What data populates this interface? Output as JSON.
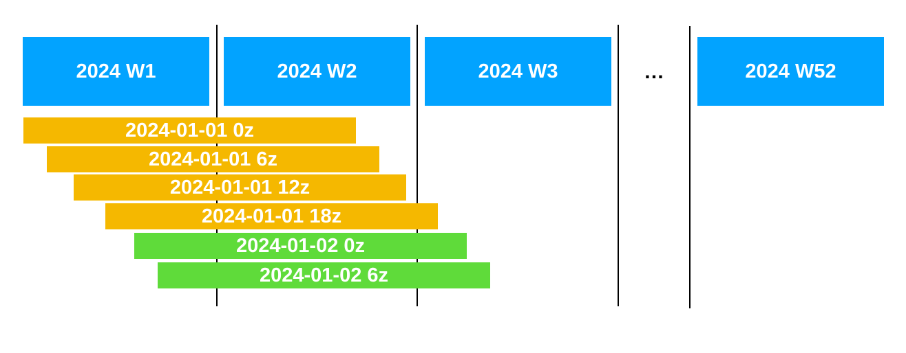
{
  "colors": {
    "week_box": "#02A3FF",
    "run_bar_day1": "#F5B800",
    "run_bar_day2": "#5FDB3A",
    "divider": "#000000"
  },
  "weeks": [
    {
      "label": "2024 W1"
    },
    {
      "label": "2024 W2"
    },
    {
      "label": "2024 W3"
    },
    {
      "label": "2024 W52"
    }
  ],
  "gap_marker": "…",
  "runs": [
    {
      "label": "2024-01-01 0z",
      "group": "day1"
    },
    {
      "label": "2024-01-01 6z",
      "group": "day1"
    },
    {
      "label": "2024-01-01 12z",
      "group": "day1"
    },
    {
      "label": "2024-01-01 18z",
      "group": "day1"
    },
    {
      "label": "2024-01-02 0z",
      "group": "day2"
    },
    {
      "label": "2024-01-02 6z",
      "group": "day2"
    }
  ]
}
